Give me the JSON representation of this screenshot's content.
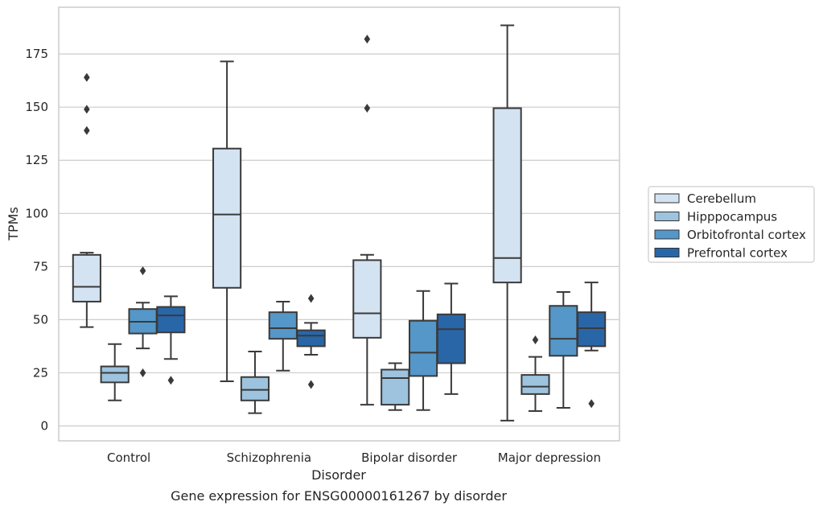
{
  "chart_data": {
    "type": "boxplot",
    "title": "",
    "caption": "Gene expression for ENSG00000161267 by disorder",
    "xlabel": "Disorder",
    "ylabel": "TPMs",
    "ylim": [
      -7,
      197
    ],
    "yticks": [
      0,
      25,
      50,
      75,
      100,
      125,
      150,
      175
    ],
    "grid": true,
    "legend_position": "right",
    "categories": [
      "Control",
      "Schizophrenia",
      "Bipolar disorder",
      "Major depression"
    ],
    "series": [
      {
        "name": "Cerebellum",
        "color": "#d4e3f2",
        "boxes": [
          {
            "whislo": 46.5,
            "q1": 58.5,
            "med": 65.5,
            "q3": 80.5,
            "whishi": 81.5,
            "fliers": [
              139,
              149,
              164
            ]
          },
          {
            "whislo": 21,
            "q1": 65,
            "med": 99.5,
            "q3": 130.5,
            "whishi": 171.5,
            "fliers": []
          },
          {
            "whislo": 10,
            "q1": 41.5,
            "med": 53,
            "q3": 78,
            "whishi": 80.5,
            "fliers": [
              149.5,
              182
            ]
          },
          {
            "whislo": 2.5,
            "q1": 67.5,
            "med": 79,
            "q3": 149.5,
            "whishi": 188.5,
            "fliers": []
          }
        ]
      },
      {
        "name": "Hipppocampus",
        "color": "#9dc3de",
        "boxes": [
          {
            "whislo": 12,
            "q1": 20.5,
            "med": 25,
            "q3": 28,
            "whishi": 38.5,
            "fliers": []
          },
          {
            "whislo": 6,
            "q1": 12,
            "med": 17,
            "q3": 23,
            "whishi": 35,
            "fliers": []
          },
          {
            "whislo": 7.5,
            "q1": 10,
            "med": 22.5,
            "q3": 26.5,
            "whishi": 29.5,
            "fliers": []
          },
          {
            "whislo": 7,
            "q1": 15,
            "med": 18.5,
            "q3": 24,
            "whishi": 32.5,
            "fliers": [
              40.5
            ]
          }
        ]
      },
      {
        "name": "Orbitofrontal cortex",
        "color": "#5497c8",
        "boxes": [
          {
            "whislo": 36.5,
            "q1": 43.5,
            "med": 49,
            "q3": 55,
            "whishi": 58,
            "fliers": [
              25,
              73
            ]
          },
          {
            "whislo": 26,
            "q1": 41,
            "med": 46,
            "q3": 53.5,
            "whishi": 58.5,
            "fliers": []
          },
          {
            "whislo": 7.5,
            "q1": 23.5,
            "med": 34.5,
            "q3": 49.5,
            "whishi": 63.5,
            "fliers": []
          },
          {
            "whislo": 8.5,
            "q1": 33,
            "med": 41,
            "q3": 56.5,
            "whishi": 63,
            "fliers": []
          }
        ]
      },
      {
        "name": "Prefrontal cortex",
        "color": "#2966a8",
        "boxes": [
          {
            "whislo": 31.5,
            "q1": 44,
            "med": 52,
            "q3": 56,
            "whishi": 61,
            "fliers": [
              21.5
            ]
          },
          {
            "whislo": 33.5,
            "q1": 37.5,
            "med": 42.5,
            "q3": 45,
            "whishi": 48.5,
            "fliers": [
              19.5,
              60
            ]
          },
          {
            "whislo": 15,
            "q1": 29.5,
            "med": 45.5,
            "q3": 52.5,
            "whishi": 67,
            "fliers": []
          },
          {
            "whislo": 35.5,
            "q1": 37.5,
            "med": 46,
            "q3": 53.5,
            "whishi": 67.5,
            "fliers": [
              10.5
            ]
          }
        ]
      }
    ]
  }
}
